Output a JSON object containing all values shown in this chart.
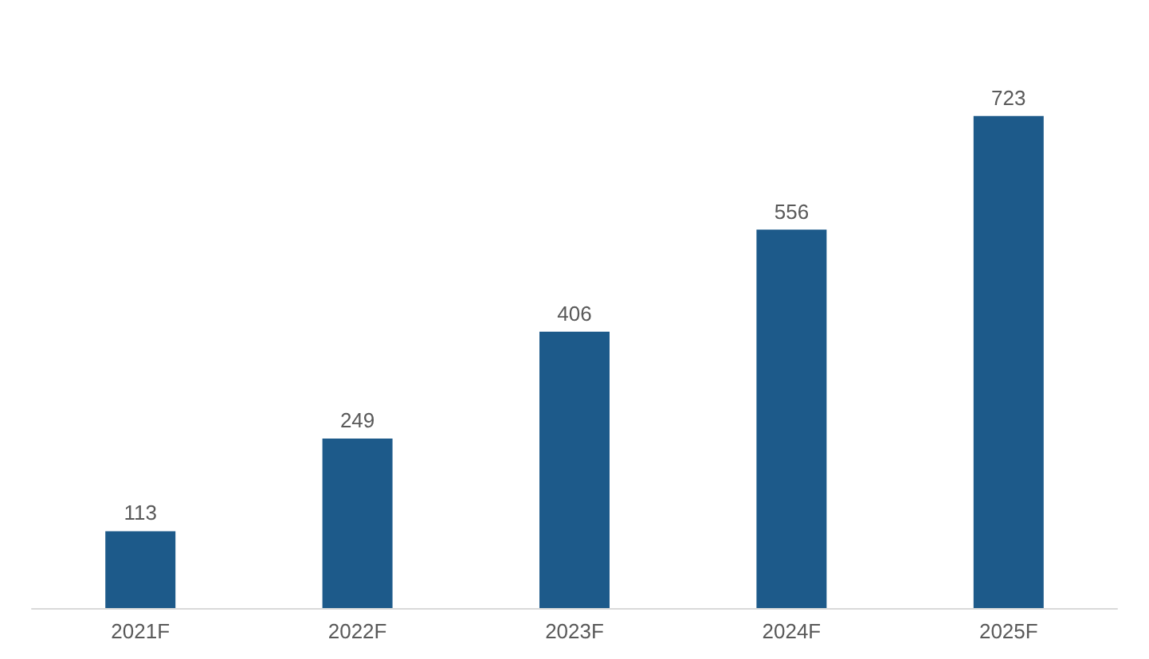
{
  "chart_data": {
    "type": "bar",
    "categories": [
      "2021F",
      "2022F",
      "2023F",
      "2024F",
      "2025F"
    ],
    "values": [
      113,
      249,
      406,
      556,
      723
    ],
    "color": "#1d5a8a",
    "data_labels": true
  }
}
